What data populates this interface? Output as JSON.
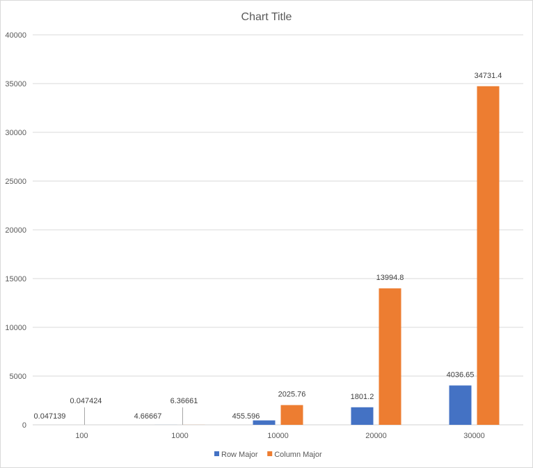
{
  "chart_data": {
    "type": "bar",
    "title": "Chart Title",
    "categories": [
      "100",
      "1000",
      "10000",
      "20000",
      "30000"
    ],
    "series": [
      {
        "name": "Row Major",
        "color": "#4472c4",
        "values": [
          0.047139,
          4.66667,
          455.596,
          1801.2,
          4036.65
        ],
        "labels": [
          "0.047139",
          "4.66667",
          "455.596",
          "1801.2",
          "4036.65"
        ]
      },
      {
        "name": "Column Major",
        "color": "#ed7d31",
        "values": [
          0.047424,
          6.36661,
          2025.76,
          13994.8,
          34731.4
        ],
        "labels": [
          "0.047424",
          "6.36661",
          "2025.76",
          "13994.8",
          "34731.4"
        ]
      }
    ],
    "ylim": [
      0,
      40000
    ],
    "yticks": [
      "0",
      "5000",
      "10000",
      "15000",
      "20000",
      "25000",
      "30000",
      "35000",
      "40000"
    ],
    "grid": true,
    "legend": "bottom"
  }
}
